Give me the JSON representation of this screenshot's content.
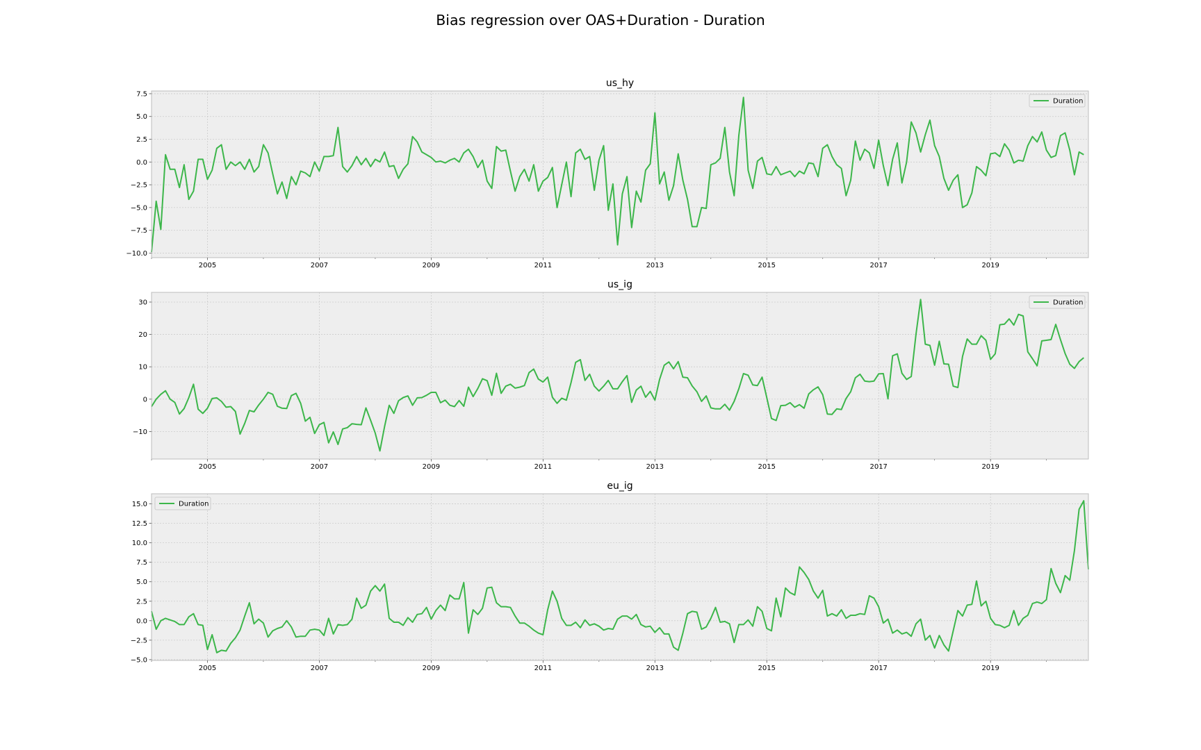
{
  "suptitle": "Bias regression over OAS+Duration - Duration",
  "colors": {
    "line": "#3cb64a",
    "axes_bg": "#eeeeee",
    "grid": "#cbcbcb",
    "spine": "#bcbcbc"
  },
  "chart_data": [
    {
      "type": "line",
      "title": "us_hy",
      "xlabel": "",
      "ylabel": "",
      "xlim": [
        2004.0,
        2020.75
      ],
      "ylim": [
        -10.5,
        7.8
      ],
      "yticks": [
        -10.0,
        -7.5,
        -5.0,
        -2.5,
        0.0,
        2.5,
        5.0,
        7.5
      ],
      "ytick_labels": [
        "−10.0",
        "−7.5",
        "−5.0",
        "−2.5",
        "0.0",
        "2.5",
        "5.0",
        "7.5"
      ],
      "xticks": [
        2005,
        2007,
        2009,
        2011,
        2013,
        2015,
        2017,
        2019
      ],
      "xtick_labels": [
        "2005",
        "2007",
        "2009",
        "2011",
        "2013",
        "2015",
        "2017",
        "2019"
      ],
      "grid": true,
      "legend": "top-right",
      "x_start": 2004.0,
      "x_step_years": 0.083333,
      "series": [
        {
          "name": "Duration",
          "values": [
            -9.9,
            -4.3,
            -7.4,
            0.8,
            -0.8,
            -0.8,
            -2.8,
            -0.3,
            -4.1,
            -3.2,
            0.3,
            0.3,
            -1.9,
            -0.9,
            1.5,
            1.9,
            -0.8,
            0.0,
            -0.4,
            0.0,
            -0.8,
            0.3,
            -1.1,
            -0.5,
            1.9,
            1.0,
            -1.3,
            -3.5,
            -2.2,
            -4.0,
            -1.6,
            -2.5,
            -1.0,
            -1.2,
            -1.6,
            0.0,
            -1.0,
            0.6,
            0.6,
            0.7,
            3.8,
            -0.5,
            -1.1,
            -0.4,
            0.6,
            -0.3,
            0.4,
            -0.5,
            0.3,
            0.0,
            1.1,
            -0.5,
            -0.4,
            -1.8,
            -0.8,
            -0.2,
            2.8,
            2.2,
            1.1,
            0.8,
            0.5,
            0.0,
            0.1,
            -0.1,
            0.2,
            0.4,
            0.0,
            1.0,
            1.4,
            0.6,
            -0.6,
            0.2,
            -2.1,
            -2.9,
            1.7,
            1.2,
            1.3,
            -1.0,
            -3.2,
            -1.6,
            -0.8,
            -2.1,
            -0.3,
            -3.2,
            -2.1,
            -1.7,
            -0.6,
            -5.0,
            -2.5,
            0.0,
            -3.8,
            1.0,
            1.4,
            0.3,
            0.6,
            -3.1,
            0.2,
            1.8,
            -5.3,
            -2.4,
            -9.1,
            -3.5,
            -1.6,
            -7.2,
            -3.2,
            -4.4,
            -0.9,
            -0.2,
            5.4,
            -2.4,
            -1.1,
            -4.2,
            -2.6,
            0.9,
            -2.0,
            -4.1,
            -7.1,
            -7.1,
            -5.0,
            -5.1,
            -0.3,
            -0.1,
            0.4,
            3.8,
            -1.1,
            -3.7,
            2.9,
            7.1,
            -0.9,
            -2.9,
            0.1,
            0.5,
            -1.3,
            -1.4,
            -0.5,
            -1.4,
            -1.2,
            -1.0,
            -1.6,
            -1.0,
            -1.3,
            -0.1,
            -0.2,
            -1.6,
            1.5,
            1.9,
            0.6,
            -0.3,
            -0.7,
            -3.7,
            -2.0,
            2.3,
            0.2,
            1.4,
            1.0,
            -0.7,
            2.4,
            -0.4,
            -2.6,
            0.3,
            2.1,
            -2.3,
            0.0,
            4.4,
            3.2,
            1.1,
            3.0,
            4.6,
            1.8,
            0.6,
            -1.8,
            -3.1,
            -2.0,
            -1.4,
            -5.0,
            -4.7,
            -3.4,
            -0.5,
            -0.9,
            -1.5,
            0.9,
            1.0,
            0.6,
            2.0,
            1.3,
            -0.1,
            0.2,
            0.1,
            1.8,
            2.8,
            2.2,
            3.3,
            1.3,
            0.5,
            0.7,
            2.9,
            3.2,
            1.3,
            -1.4,
            1.1,
            0.8
          ]
        }
      ]
    },
    {
      "type": "line",
      "title": "us_ig",
      "xlabel": "",
      "ylabel": "",
      "xlim": [
        2004.0,
        2020.75
      ],
      "ylim": [
        -18.5,
        33.0
      ],
      "yticks": [
        -10,
        0,
        10,
        20,
        30
      ],
      "ytick_labels": [
        "−10",
        "0",
        "10",
        "20",
        "30"
      ],
      "xticks": [
        2005,
        2007,
        2009,
        2011,
        2013,
        2015,
        2017,
        2019
      ],
      "xtick_labels": [
        "2005",
        "2007",
        "2009",
        "2011",
        "2013",
        "2015",
        "2017",
        "2019"
      ],
      "grid": true,
      "legend": "top-right",
      "x_start": 2004.0,
      "x_step_years": 0.083333,
      "series": [
        {
          "name": "Duration",
          "values": [
            -2.3,
            0.0,
            1.5,
            2.6,
            0.0,
            -1.0,
            -4.6,
            -2.9,
            0.5,
            4.6,
            -3.1,
            -4.4,
            -2.8,
            0.2,
            0.4,
            -0.7,
            -2.5,
            -2.3,
            -3.8,
            -10.8,
            -7.5,
            -3.5,
            -3.9,
            -1.8,
            0.0,
            2.1,
            1.5,
            -2.2,
            -2.8,
            -2.9,
            1.1,
            1.8,
            -1.3,
            -6.8,
            -5.6,
            -10.6,
            -7.9,
            -7.2,
            -13.5,
            -10.1,
            -14.0,
            -9.2,
            -8.8,
            -7.6,
            -7.8,
            -7.9,
            -2.7,
            -6.5,
            -10.5,
            -16.0,
            -8.5,
            -1.9,
            -4.4,
            -0.5,
            0.5,
            1.0,
            -1.9,
            0.4,
            0.5,
            1.2,
            2.1,
            2.1,
            -1.1,
            -0.3,
            -1.9,
            -2.3,
            -0.4,
            -2.2,
            3.7,
            0.8,
            3.3,
            6.3,
            5.7,
            1.2,
            8.0,
            1.8,
            4.0,
            4.6,
            3.4,
            3.7,
            4.2,
            8.2,
            9.3,
            6.2,
            5.3,
            6.8,
            0.6,
            -1.3,
            0.3,
            -0.3,
            5.1,
            11.4,
            12.2,
            5.8,
            7.7,
            4.0,
            2.5,
            4.0,
            5.8,
            3.2,
            3.2,
            5.4,
            7.3,
            -1.0,
            2.8,
            4.0,
            0.6,
            2.4,
            -0.3,
            6.1,
            10.5,
            11.5,
            9.4,
            11.6,
            6.8,
            6.6,
            4.1,
            2.3,
            -0.7,
            1.0,
            -2.7,
            -3.0,
            -3.0,
            -1.6,
            -3.4,
            -0.7,
            3.2,
            7.9,
            7.4,
            4.4,
            4.2,
            6.8,
            0.4,
            -6.0,
            -6.6,
            -2.0,
            -1.9,
            -1.1,
            -2.5,
            -1.7,
            -2.8,
            1.6,
            2.9,
            3.8,
            1.4,
            -4.6,
            -4.7,
            -3.0,
            -3.2,
            0.2,
            2.3,
            6.6,
            7.7,
            5.6,
            5.4,
            5.6,
            7.8,
            7.9,
            0.1,
            13.4,
            14.0,
            8.0,
            6.1,
            7.0,
            20.0,
            30.8,
            17.0,
            16.6,
            10.5,
            17.9,
            10.9,
            10.8,
            4.0,
            3.6,
            13.2,
            18.6,
            17.0,
            17.0,
            19.6,
            18.2,
            12.3,
            14.0,
            23.0,
            23.2,
            24.8,
            22.9,
            26.2,
            25.7,
            14.6,
            12.5,
            10.3,
            18.0,
            18.2,
            18.4,
            23.1,
            18.4,
            14.1,
            10.8,
            9.5,
            11.6,
            12.8
          ]
        }
      ]
    },
    {
      "type": "line",
      "title": "eu_ig",
      "xlabel": "",
      "ylabel": "",
      "xlim": [
        2004.0,
        2020.75
      ],
      "ylim": [
        -5.1,
        16.3
      ],
      "yticks": [
        -5.0,
        -2.5,
        0.0,
        2.5,
        5.0,
        7.5,
        10.0,
        12.5,
        15.0
      ],
      "ytick_labels": [
        "−5.0",
        "−2.5",
        "0.0",
        "2.5",
        "5.0",
        "7.5",
        "10.0",
        "12.5",
        "15.0"
      ],
      "xticks": [
        2005,
        2007,
        2009,
        2011,
        2013,
        2015,
        2017,
        2019
      ],
      "xtick_labels": [
        "2005",
        "2007",
        "2009",
        "2011",
        "2013",
        "2015",
        "2017",
        "2019"
      ],
      "grid": true,
      "legend": "top-left",
      "x_start": 2004.0,
      "x_step_years": 0.083333,
      "series": [
        {
          "name": "Duration",
          "values": [
            1.2,
            -1.1,
            0.0,
            0.3,
            0.1,
            -0.1,
            -0.5,
            -0.5,
            0.5,
            0.9,
            -0.5,
            -0.6,
            -3.7,
            -1.8,
            -4.1,
            -3.8,
            -3.9,
            -2.9,
            -2.2,
            -1.2,
            0.6,
            2.3,
            -0.4,
            0.2,
            -0.3,
            -2.1,
            -1.3,
            -1.0,
            -0.8,
            0.0,
            -0.8,
            -2.1,
            -2.0,
            -2.0,
            -1.2,
            -1.1,
            -1.2,
            -1.9,
            0.3,
            -1.7,
            -0.5,
            -0.6,
            -0.5,
            0.2,
            2.9,
            1.6,
            2.0,
            3.8,
            4.5,
            3.8,
            4.7,
            0.3,
            -0.2,
            -0.2,
            -0.6,
            0.4,
            -0.2,
            0.8,
            0.9,
            1.7,
            0.2,
            1.3,
            2.0,
            1.3,
            3.3,
            2.8,
            2.8,
            4.9,
            -1.6,
            1.4,
            0.8,
            1.6,
            4.2,
            4.3,
            2.3,
            1.8,
            1.8,
            1.7,
            0.6,
            -0.3,
            -0.3,
            -0.7,
            -1.2,
            -1.6,
            -1.8,
            1.4,
            3.8,
            2.5,
            0.3,
            -0.6,
            -0.6,
            -0.2,
            -0.9,
            0.1,
            -0.6,
            -0.4,
            -0.7,
            -1.2,
            -1.0,
            -1.1,
            0.2,
            0.6,
            0.6,
            0.2,
            0.8,
            -0.5,
            -0.8,
            -0.7,
            -1.5,
            -0.9,
            -1.7,
            -1.7,
            -3.4,
            -3.8,
            -1.6,
            0.9,
            1.2,
            1.1,
            -1.1,
            -0.8,
            0.3,
            1.7,
            -0.2,
            -0.1,
            -0.4,
            -2.8,
            -0.5,
            -0.5,
            0.1,
            -0.7,
            1.8,
            1.2,
            -1.0,
            -1.3,
            2.9,
            0.5,
            4.2,
            3.6,
            3.3,
            6.9,
            6.2,
            5.3,
            3.8,
            2.9,
            3.9,
            0.6,
            0.9,
            0.6,
            1.4,
            0.3,
            0.7,
            0.7,
            0.9,
            0.8,
            3.2,
            2.9,
            1.8,
            -0.3,
            0.2,
            -1.6,
            -1.2,
            -1.7,
            -1.5,
            -2.0,
            -0.4,
            0.2,
            -2.5,
            -1.9,
            -3.5,
            -1.9,
            -3.1,
            -3.9,
            -1.3,
            1.3,
            0.6,
            2.0,
            2.1,
            5.1,
            1.9,
            2.5,
            0.3,
            -0.5,
            -0.6,
            -0.9,
            -0.6,
            1.3,
            -0.6,
            0.3,
            0.7,
            2.2,
            2.4,
            2.2,
            2.7,
            6.7,
            4.8,
            3.6,
            5.8,
            5.2,
            9.0,
            14.3,
            15.4,
            6.6
          ]
        }
      ]
    }
  ]
}
